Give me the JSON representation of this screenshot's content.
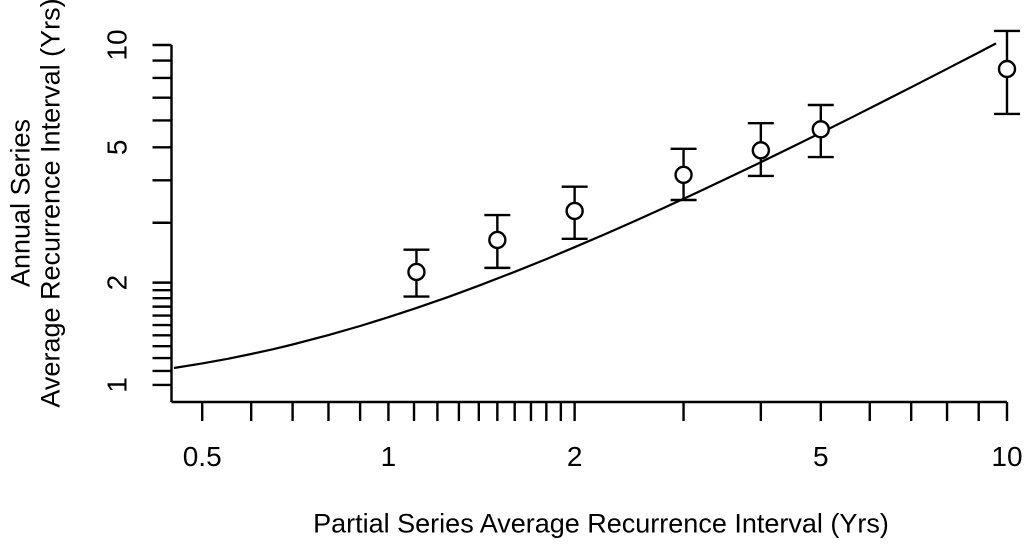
{
  "chart_data": {
    "type": "scatter",
    "title": "",
    "xlabel": "Partial Series Average Recurrence Interval (Yrs)",
    "ylabel_line1": "Annual Series",
    "ylabel_line2": "Average Recurrence Interval (Yrs)",
    "x_scale": "log",
    "y_scale": "log",
    "xlim": [
      0.446,
      10
    ],
    "ylim": [
      0.891,
      10
    ],
    "grid": false,
    "legend": "none",
    "foreground_color": "#000000",
    "background_color": "#ffffff",
    "x_major_ticks": {
      "values": [
        0.5,
        1,
        2,
        5,
        10
      ],
      "labels": [
        "0.5",
        "1",
        "2",
        "5",
        "10"
      ]
    },
    "x_minor_ticks": [
      0.6,
      0.7,
      0.8,
      0.9,
      1.1,
      1.2,
      1.3,
      1.4,
      1.5,
      1.6,
      1.7,
      1.8,
      1.9,
      3,
      4,
      6,
      7,
      8,
      9
    ],
    "y_major_ticks": {
      "values": [
        1,
        2,
        5,
        10
      ],
      "labels": [
        "1",
        "2",
        "5",
        "10"
      ]
    },
    "y_minor_ticks": [
      1.1,
      1.2,
      1.3,
      1.4,
      1.5,
      1.6,
      1.7,
      1.8,
      1.9,
      3,
      4,
      6,
      7,
      8,
      9
    ],
    "points_with_error_bars": [
      {
        "x": 1.11,
        "y": 2.15,
        "y_lo": 1.82,
        "y_hi": 2.5
      },
      {
        "x": 1.5,
        "y": 2.67,
        "y_lo": 2.21,
        "y_hi": 3.16
      },
      {
        "x": 2.0,
        "y": 3.25,
        "y_lo": 2.69,
        "y_hi": 3.83
      },
      {
        "x": 3.0,
        "y": 4.15,
        "y_lo": 3.5,
        "y_hi": 4.95
      },
      {
        "x": 4.0,
        "y": 4.9,
        "y_lo": 4.12,
        "y_hi": 5.89
      },
      {
        "x": 5.0,
        "y": 5.65,
        "y_lo": 4.68,
        "y_hi": 6.66
      },
      {
        "x": 10.0,
        "y": 8.5,
        "y_lo": 6.27,
        "y_hi": 11.0
      }
    ],
    "curve": {
      "type": "line",
      "x": [
        0.45,
        0.5,
        0.55,
        0.6,
        0.65,
        0.7,
        0.8,
        0.9,
        1.0,
        1.1,
        1.25,
        1.4,
        1.6,
        1.8,
        2.0,
        2.25,
        2.5,
        2.8,
        3.2,
        3.6,
        4.0,
        4.5,
        5.0,
        5.6,
        6.3,
        7.1,
        8.0,
        9.0,
        9.6
      ],
      "y": [
        1.122,
        1.157,
        1.194,
        1.233,
        1.273,
        1.315,
        1.402,
        1.491,
        1.582,
        1.675,
        1.816,
        1.959,
        2.152,
        2.346,
        2.542,
        2.787,
        3.033,
        3.33,
        3.726,
        4.124,
        4.521,
        5.018,
        5.517,
        6.112,
        6.817,
        7.61,
        8.511,
        9.506,
        10.11
      ]
    }
  }
}
